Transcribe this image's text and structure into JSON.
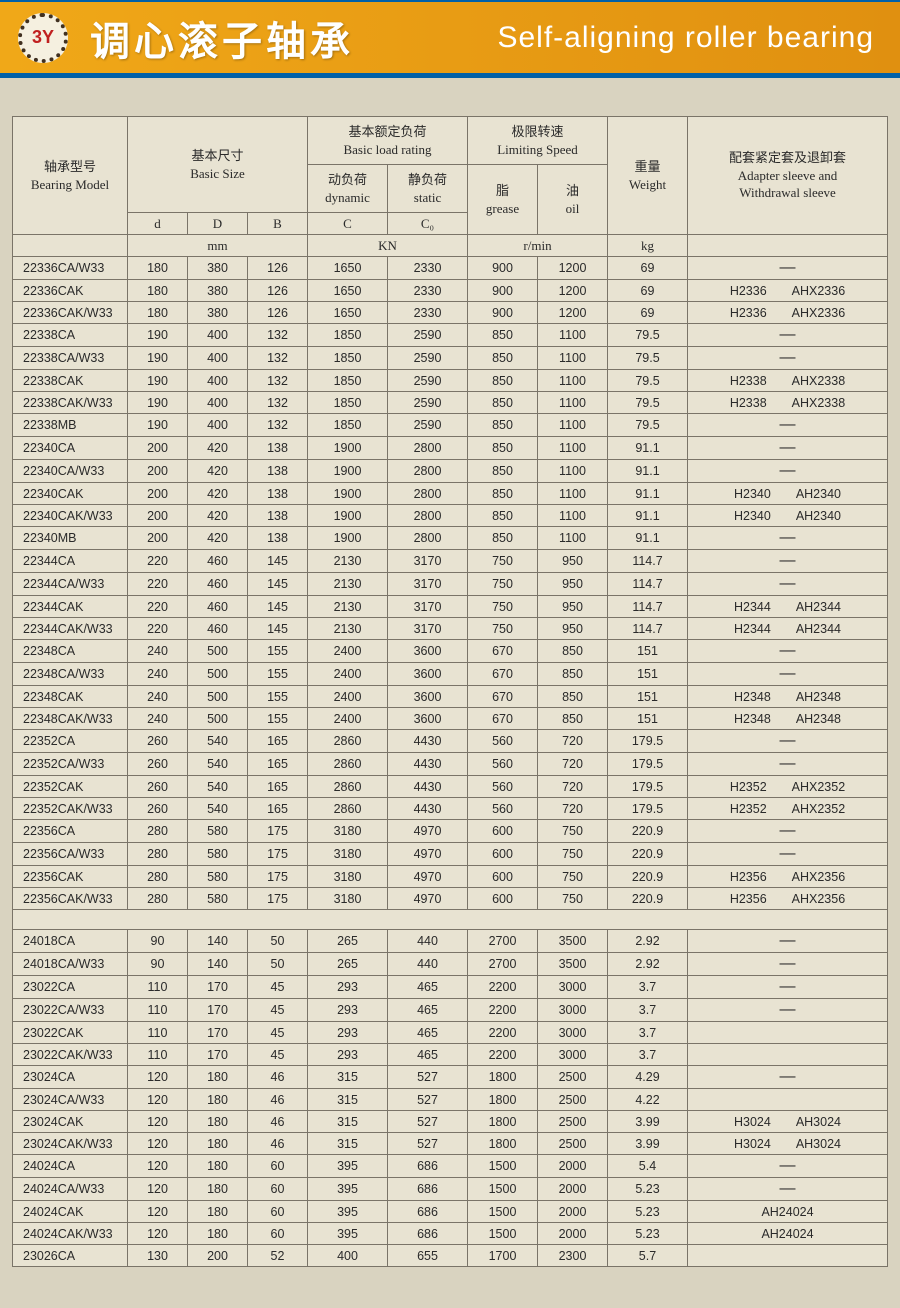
{
  "header": {
    "logo_text": "3Y",
    "title_cn": "调心滚子轴承",
    "title_en": "Self-aligning roller bearing"
  },
  "colors": {
    "banner_bg": "#f0a818",
    "banner_border": "#0060a8",
    "page_bg": "#d9d3c0",
    "table_bg": "#e8e3d2",
    "border": "#7a7468",
    "text": "#2a2a2a",
    "title_text": "#ffffff"
  },
  "table_headers": {
    "bearing_model_cn": "轴承型号",
    "bearing_model_en": "Bearing Model",
    "basic_size_cn": "基本尺寸",
    "basic_size_en": "Basic Size",
    "basic_load_cn": "基本额定负荷",
    "basic_load_en": "Basic load rating",
    "limiting_speed_cn": "极限转速",
    "limiting_speed_en": "Limiting Speed",
    "weight_cn": "重量",
    "weight_en": "Weight",
    "sleeve_cn": "配套紧定套及退卸套",
    "sleeve_en1": "Adapter sleeve and",
    "sleeve_en2": "Withdrawal sleeve",
    "dynamic_cn": "动负荷",
    "dynamic_en": "dynamic",
    "static_cn": "静负荷",
    "static_en": "static",
    "grease_cn": "脂",
    "grease_en": "grease",
    "oil_cn": "油",
    "oil_en": "oil",
    "d": "d",
    "D": "D",
    "B": "B",
    "C": "C",
    "C0": "C₀",
    "unit_mm": "mm",
    "unit_kn": "KN",
    "unit_rpm": "r/min",
    "unit_kg": "kg"
  },
  "rows1": [
    {
      "model": "22336CA/W33",
      "d": "180",
      "D": "380",
      "B": "126",
      "C": "1650",
      "C0": "2330",
      "grease": "900",
      "oil": "1200",
      "wt": "69",
      "sleeve": "—"
    },
    {
      "model": "22336CAK",
      "d": "180",
      "D": "380",
      "B": "126",
      "C": "1650",
      "C0": "2330",
      "grease": "900",
      "oil": "1200",
      "wt": "69",
      "sleeve": "H2336   AHX2336"
    },
    {
      "model": "22336CAK/W33",
      "d": "180",
      "D": "380",
      "B": "126",
      "C": "1650",
      "C0": "2330",
      "grease": "900",
      "oil": "1200",
      "wt": "69",
      "sleeve": "H2336   AHX2336"
    },
    {
      "model": "22338CA",
      "d": "190",
      "D": "400",
      "B": "132",
      "C": "1850",
      "C0": "2590",
      "grease": "850",
      "oil": "1100",
      "wt": "79.5",
      "sleeve": "—"
    },
    {
      "model": "22338CA/W33",
      "d": "190",
      "D": "400",
      "B": "132",
      "C": "1850",
      "C0": "2590",
      "grease": "850",
      "oil": "1100",
      "wt": "79.5",
      "sleeve": "—"
    },
    {
      "model": "22338CAK",
      "d": "190",
      "D": "400",
      "B": "132",
      "C": "1850",
      "C0": "2590",
      "grease": "850",
      "oil": "1100",
      "wt": "79.5",
      "sleeve": "H2338   AHX2338"
    },
    {
      "model": "22338CAK/W33",
      "d": "190",
      "D": "400",
      "B": "132",
      "C": "1850",
      "C0": "2590",
      "grease": "850",
      "oil": "1100",
      "wt": "79.5",
      "sleeve": "H2338   AHX2338"
    },
    {
      "model": "22338MB",
      "d": "190",
      "D": "400",
      "B": "132",
      "C": "1850",
      "C0": "2590",
      "grease": "850",
      "oil": "1100",
      "wt": "79.5",
      "sleeve": "—"
    },
    {
      "model": "22340CA",
      "d": "200",
      "D": "420",
      "B": "138",
      "C": "1900",
      "C0": "2800",
      "grease": "850",
      "oil": "1100",
      "wt": "91.1",
      "sleeve": "—"
    },
    {
      "model": "22340CA/W33",
      "d": "200",
      "D": "420",
      "B": "138",
      "C": "1900",
      "C0": "2800",
      "grease": "850",
      "oil": "1100",
      "wt": "91.1",
      "sleeve": "—"
    },
    {
      "model": "22340CAK",
      "d": "200",
      "D": "420",
      "B": "138",
      "C": "1900",
      "C0": "2800",
      "grease": "850",
      "oil": "1100",
      "wt": "91.1",
      "sleeve": "H2340   AH2340"
    },
    {
      "model": "22340CAK/W33",
      "d": "200",
      "D": "420",
      "B": "138",
      "C": "1900",
      "C0": "2800",
      "grease": "850",
      "oil": "1100",
      "wt": "91.1",
      "sleeve": "H2340   AH2340"
    },
    {
      "model": "22340MB",
      "d": "200",
      "D": "420",
      "B": "138",
      "C": "1900",
      "C0": "2800",
      "grease": "850",
      "oil": "1100",
      "wt": "91.1",
      "sleeve": "—"
    },
    {
      "model": "22344CA",
      "d": "220",
      "D": "460",
      "B": "145",
      "C": "2130",
      "C0": "3170",
      "grease": "750",
      "oil": "950",
      "wt": "114.7",
      "sleeve": "—"
    },
    {
      "model": "22344CA/W33",
      "d": "220",
      "D": "460",
      "B": "145",
      "C": "2130",
      "C0": "3170",
      "grease": "750",
      "oil": "950",
      "wt": "114.7",
      "sleeve": "—"
    },
    {
      "model": "22344CAK",
      "d": "220",
      "D": "460",
      "B": "145",
      "C": "2130",
      "C0": "3170",
      "grease": "750",
      "oil": "950",
      "wt": "114.7",
      "sleeve": "H2344   AH2344"
    },
    {
      "model": "22344CAK/W33",
      "d": "220",
      "D": "460",
      "B": "145",
      "C": "2130",
      "C0": "3170",
      "grease": "750",
      "oil": "950",
      "wt": "114.7",
      "sleeve": "H2344   AH2344"
    },
    {
      "model": "22348CA",
      "d": "240",
      "D": "500",
      "B": "155",
      "C": "2400",
      "C0": "3600",
      "grease": "670",
      "oil": "850",
      "wt": "151",
      "sleeve": "—"
    },
    {
      "model": "22348CA/W33",
      "d": "240",
      "D": "500",
      "B": "155",
      "C": "2400",
      "C0": "3600",
      "grease": "670",
      "oil": "850",
      "wt": "151",
      "sleeve": "—"
    },
    {
      "model": "22348CAK",
      "d": "240",
      "D": "500",
      "B": "155",
      "C": "2400",
      "C0": "3600",
      "grease": "670",
      "oil": "850",
      "wt": "151",
      "sleeve": "H2348   AH2348"
    },
    {
      "model": "22348CAK/W33",
      "d": "240",
      "D": "500",
      "B": "155",
      "C": "2400",
      "C0": "3600",
      "grease": "670",
      "oil": "850",
      "wt": "151",
      "sleeve": "H2348   AH2348"
    },
    {
      "model": "22352CA",
      "d": "260",
      "D": "540",
      "B": "165",
      "C": "2860",
      "C0": "4430",
      "grease": "560",
      "oil": "720",
      "wt": "179.5",
      "sleeve": "—"
    },
    {
      "model": "22352CA/W33",
      "d": "260",
      "D": "540",
      "B": "165",
      "C": "2860",
      "C0": "4430",
      "grease": "560",
      "oil": "720",
      "wt": "179.5",
      "sleeve": "—"
    },
    {
      "model": "22352CAK",
      "d": "260",
      "D": "540",
      "B": "165",
      "C": "2860",
      "C0": "4430",
      "grease": "560",
      "oil": "720",
      "wt": "179.5",
      "sleeve": "H2352   AHX2352"
    },
    {
      "model": "22352CAK/W33",
      "d": "260",
      "D": "540",
      "B": "165",
      "C": "2860",
      "C0": "4430",
      "grease": "560",
      "oil": "720",
      "wt": "179.5",
      "sleeve": "H2352   AHX2352"
    },
    {
      "model": "22356CA",
      "d": "280",
      "D": "580",
      "B": "175",
      "C": "3180",
      "C0": "4970",
      "grease": "600",
      "oil": "750",
      "wt": "220.9",
      "sleeve": "—"
    },
    {
      "model": "22356CA/W33",
      "d": "280",
      "D": "580",
      "B": "175",
      "C": "3180",
      "C0": "4970",
      "grease": "600",
      "oil": "750",
      "wt": "220.9",
      "sleeve": "—"
    },
    {
      "model": "22356CAK",
      "d": "280",
      "D": "580",
      "B": "175",
      "C": "3180",
      "C0": "4970",
      "grease": "600",
      "oil": "750",
      "wt": "220.9",
      "sleeve": "H2356   AHX2356"
    },
    {
      "model": "22356CAK/W33",
      "d": "280",
      "D": "580",
      "B": "175",
      "C": "3180",
      "C0": "4970",
      "grease": "600",
      "oil": "750",
      "wt": "220.9",
      "sleeve": "H2356   AHX2356"
    }
  ],
  "rows2": [
    {
      "model": "24018CA",
      "d": "90",
      "D": "140",
      "B": "50",
      "C": "265",
      "C0": "440",
      "grease": "2700",
      "oil": "3500",
      "wt": "2.92",
      "sleeve": "—"
    },
    {
      "model": "24018CA/W33",
      "d": "90",
      "D": "140",
      "B": "50",
      "C": "265",
      "C0": "440",
      "grease": "2700",
      "oil": "3500",
      "wt": "2.92",
      "sleeve": "—"
    },
    {
      "model": "23022CA",
      "d": "110",
      "D": "170",
      "B": "45",
      "C": "293",
      "C0": "465",
      "grease": "2200",
      "oil": "3000",
      "wt": "3.7",
      "sleeve": "—"
    },
    {
      "model": "23022CA/W33",
      "d": "110",
      "D": "170",
      "B": "45",
      "C": "293",
      "C0": "465",
      "grease": "2200",
      "oil": "3000",
      "wt": "3.7",
      "sleeve": "—"
    },
    {
      "model": "23022CAK",
      "d": "110",
      "D": "170",
      "B": "45",
      "C": "293",
      "C0": "465",
      "grease": "2200",
      "oil": "3000",
      "wt": "3.7",
      "sleeve": ""
    },
    {
      "model": "23022CAK/W33",
      "d": "110",
      "D": "170",
      "B": "45",
      "C": "293",
      "C0": "465",
      "grease": "2200",
      "oil": "3000",
      "wt": "3.7",
      "sleeve": ""
    },
    {
      "model": "23024CA",
      "d": "120",
      "D": "180",
      "B": "46",
      "C": "315",
      "C0": "527",
      "grease": "1800",
      "oil": "2500",
      "wt": "4.29",
      "sleeve": "—"
    },
    {
      "model": "23024CA/W33",
      "d": "120",
      "D": "180",
      "B": "46",
      "C": "315",
      "C0": "527",
      "grease": "1800",
      "oil": "2500",
      "wt": "4.22",
      "sleeve": ""
    },
    {
      "model": "23024CAK",
      "d": "120",
      "D": "180",
      "B": "46",
      "C": "315",
      "C0": "527",
      "grease": "1800",
      "oil": "2500",
      "wt": "3.99",
      "sleeve": "H3024   AH3024"
    },
    {
      "model": "23024CAK/W33",
      "d": "120",
      "D": "180",
      "B": "46",
      "C": "315",
      "C0": "527",
      "grease": "1800",
      "oil": "2500",
      "wt": "3.99",
      "sleeve": "H3024   AH3024"
    },
    {
      "model": "24024CA",
      "d": "120",
      "D": "180",
      "B": "60",
      "C": "395",
      "C0": "686",
      "grease": "1500",
      "oil": "2000",
      "wt": "5.4",
      "sleeve": "—"
    },
    {
      "model": "24024CA/W33",
      "d": "120",
      "D": "180",
      "B": "60",
      "C": "395",
      "C0": "686",
      "grease": "1500",
      "oil": "2000",
      "wt": "5.23",
      "sleeve": "—"
    },
    {
      "model": "24024CAK",
      "d": "120",
      "D": "180",
      "B": "60",
      "C": "395",
      "C0": "686",
      "grease": "1500",
      "oil": "2000",
      "wt": "5.23",
      "sleeve": "AH24024"
    },
    {
      "model": "24024CAK/W33",
      "d": "120",
      "D": "180",
      "B": "60",
      "C": "395",
      "C0": "686",
      "grease": "1500",
      "oil": "2000",
      "wt": "5.23",
      "sleeve": "AH24024"
    },
    {
      "model": "23026CA",
      "d": "130",
      "D": "200",
      "B": "52",
      "C": "400",
      "C0": "655",
      "grease": "1700",
      "oil": "2300",
      "wt": "5.7",
      "sleeve": ""
    }
  ]
}
